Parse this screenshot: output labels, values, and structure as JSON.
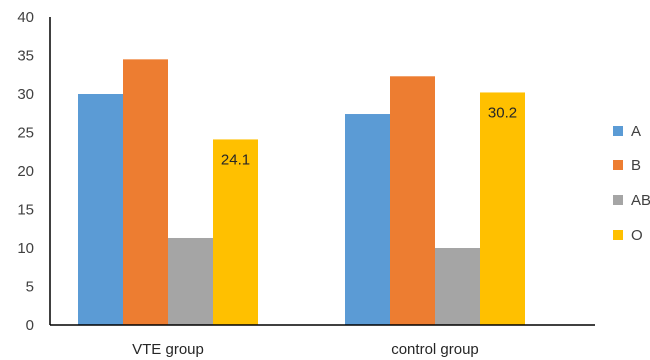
{
  "chart_data": {
    "type": "bar",
    "categories": [
      "VTE group",
      "control group"
    ],
    "series": [
      {
        "name": "A",
        "values": [
          30.0,
          27.4
        ],
        "color": "#5B9BD5"
      },
      {
        "name": "B",
        "values": [
          34.5,
          32.3
        ],
        "color": "#ED7D31"
      },
      {
        "name": "AB",
        "values": [
          11.3,
          10.0
        ],
        "color": "#A5A5A5"
      },
      {
        "name": "O",
        "values": [
          24.1,
          30.2
        ],
        "color": "#FFC000"
      }
    ],
    "data_labels": [
      {
        "series": "O",
        "category": "VTE group",
        "text": "24.1"
      },
      {
        "series": "O",
        "category": "control group",
        "text": "30.2"
      }
    ],
    "yticks": [
      "0",
      "5",
      "10",
      "15",
      "20",
      "25",
      "30",
      "35",
      "40"
    ],
    "ylim": [
      0,
      40
    ],
    "grid": false,
    "legend_position": "right"
  }
}
